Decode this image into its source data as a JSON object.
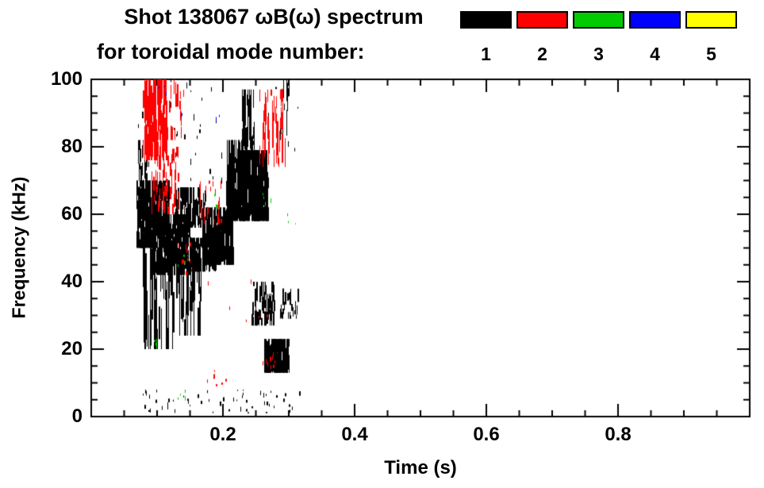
{
  "chart": {
    "title": "Shot 138067 ωB(ω) spectrum",
    "subtitle": "for toroidal mode number:"
  },
  "legend": {
    "position": "top-right",
    "items": [
      {
        "label": "1",
        "color": "#000000"
      },
      {
        "label": "2",
        "color": "#ff0000"
      },
      {
        "label": "3",
        "color": "#00cc00"
      },
      {
        "label": "4",
        "color": "#0000ff"
      },
      {
        "label": "5",
        "color": "#ffff00"
      }
    ]
  },
  "chart_data": {
    "type": "scatter",
    "title": "Shot 138067 ωB(ω) spectrum for toroidal mode number: 1 2 3 4 5",
    "xlabel": "Time (s)",
    "ylabel": "Frequency (kHz)",
    "xlim": [
      0,
      1.0
    ],
    "ylim": [
      0,
      100
    ],
    "xticks": [
      0.2,
      0.4,
      0.6,
      0.8
    ],
    "yticks": [
      0,
      20,
      40,
      60,
      80,
      100
    ],
    "x_minor_step": 0.05,
    "y_minor_step": 5,
    "grid": false,
    "seed": 42,
    "series": [
      {
        "name": "n=1",
        "color": "#000000",
        "clusters": [
          {
            "t": [
              0.068,
              0.118
            ],
            "f": [
              50,
              70
            ],
            "n": 300,
            "len": [
              2,
              9
            ]
          },
          {
            "t": [
              0.092,
              0.15
            ],
            "f": [
              42,
              60
            ],
            "n": 280,
            "len": [
              2,
              9
            ]
          },
          {
            "t": [
              0.078,
              0.125
            ],
            "f": [
              20,
              52
            ],
            "n": 45,
            "len": [
              6,
              26
            ]
          },
          {
            "t": [
              0.125,
              0.172
            ],
            "f": [
              56,
              68
            ],
            "n": 120,
            "len": [
              2,
              6
            ]
          },
          {
            "t": [
              0.128,
              0.175
            ],
            "f": [
              24,
              50
            ],
            "n": 40,
            "len": [
              4,
              18
            ]
          },
          {
            "t": [
              0.15,
              0.19
            ],
            "f": [
              43,
              53
            ],
            "n": 110,
            "len": [
              2,
              7
            ]
          },
          {
            "t": [
              0.168,
              0.215
            ],
            "f": [
              45,
              62
            ],
            "n": 220,
            "len": [
              3,
              9
            ]
          },
          {
            "t": [
              0.205,
              0.228
            ],
            "f": [
              58,
              82
            ],
            "n": 70,
            "len": [
              4,
              16
            ]
          },
          {
            "t": [
              0.222,
              0.268
            ],
            "f": [
              58,
              79
            ],
            "n": 300,
            "len": [
              3,
              11
            ]
          },
          {
            "t": [
              0.228,
              0.247
            ],
            "f": [
              79,
              97
            ],
            "n": 45,
            "len": [
              3,
              12
            ]
          },
          {
            "t": [
              0.243,
              0.277
            ],
            "f": [
              27,
              40
            ],
            "n": 60,
            "len": [
              2,
              7
            ]
          },
          {
            "t": [
              0.262,
              0.3
            ],
            "f": [
              13,
              23
            ],
            "n": 240,
            "len": [
              2,
              6
            ]
          },
          {
            "t": [
              0.286,
              0.316
            ],
            "f": [
              29,
              38
            ],
            "n": 25,
            "len": [
              1,
              4
            ]
          },
          {
            "t": [
              0.075,
              0.318
            ],
            "f": [
              1,
              8
            ],
            "n": 55,
            "len": [
              0.4,
              1.5
            ]
          },
          {
            "t": [
              0.07,
              0.085
            ],
            "f": [
              68,
              82
            ],
            "n": 25,
            "len": [
              2,
              6
            ]
          },
          {
            "t": [
              0.15,
              0.32
            ],
            "f": [
              68,
              100
            ],
            "n": 35,
            "len": [
              0.4,
              2
            ]
          },
          {
            "t": [
              0.07,
              0.145
            ],
            "f": [
              72,
              100
            ],
            "n": 25,
            "len": [
              0.4,
              2
            ]
          },
          {
            "t": [
              0.285,
              0.3
            ],
            "f": [
              82,
              100
            ],
            "n": 15,
            "len": [
              2,
              8
            ]
          }
        ]
      },
      {
        "name": "n=2",
        "color": "#ff0000",
        "clusters": [
          {
            "t": [
              0.078,
              0.115
            ],
            "f": [
              76,
              100
            ],
            "n": 130,
            "len": [
              3,
              12
            ]
          },
          {
            "t": [
              0.088,
              0.132
            ],
            "f": [
              60,
              80
            ],
            "n": 55,
            "len": [
              2,
              6
            ]
          },
          {
            "t": [
              0.1,
              0.14
            ],
            "f": [
              82,
              100
            ],
            "n": 30,
            "len": [
              2,
              5
            ]
          },
          {
            "t": [
              0.16,
              0.198
            ],
            "f": [
              57,
              70
            ],
            "n": 25,
            "len": [
              1,
              4
            ]
          },
          {
            "t": [
              0.255,
              0.295
            ],
            "f": [
              74,
              97
            ],
            "n": 45,
            "len": [
              3,
              10
            ]
          },
          {
            "t": [
              0.258,
              0.278
            ],
            "f": [
              14,
              19
            ],
            "n": 10,
            "len": [
              0.5,
              1.5
            ]
          },
          {
            "t": [
              0.175,
              0.205
            ],
            "f": [
              9,
              14
            ],
            "n": 7,
            "len": [
              0.5,
              1.5
            ]
          },
          {
            "t": [
              0.13,
              0.16
            ],
            "f": [
              45,
              52
            ],
            "n": 10,
            "len": [
              0.5,
              2
            ]
          },
          {
            "t": [
              0.095,
              0.3
            ],
            "f": [
              28,
              44
            ],
            "n": 8,
            "len": [
              0.5,
              1.5
            ]
          }
        ]
      },
      {
        "name": "n=3",
        "color": "#00cc00",
        "clusters": [
          {
            "t": [
              0.085,
              0.1
            ],
            "f": [
              20,
              24
            ],
            "n": 4,
            "len": [
              0.5,
              1.5
            ]
          },
          {
            "t": [
              0.125,
              0.145
            ],
            "f": [
              3,
              8
            ],
            "n": 4,
            "len": [
              0.5,
              1.5
            ]
          },
          {
            "t": [
              0.13,
              0.145
            ],
            "f": [
              44,
              48
            ],
            "n": 3,
            "len": [
              0.5,
              1.5
            ]
          },
          {
            "t": [
              0.185,
              0.2
            ],
            "f": [
              60,
              66
            ],
            "n": 4,
            "len": [
              0.5,
              1.5
            ]
          },
          {
            "t": [
              0.255,
              0.275
            ],
            "f": [
              62,
              68
            ],
            "n": 4,
            "len": [
              0.5,
              1.5
            ]
          },
          {
            "t": [
              0.295,
              0.31
            ],
            "f": [
              57,
              62
            ],
            "n": 3,
            "len": [
              0.5,
              1.5
            ]
          }
        ]
      },
      {
        "name": "n=4",
        "color": "#0000ff",
        "clusters": [
          {
            "t": [
              0.1,
              0.115
            ],
            "f": [
              94,
              99
            ],
            "n": 3,
            "len": [
              0.5,
              1.5
            ]
          },
          {
            "t": [
              0.13,
              0.14
            ],
            "f": [
              86,
              90
            ],
            "n": 2,
            "len": [
              0.5,
              1.5
            ]
          },
          {
            "t": [
              0.185,
              0.195
            ],
            "f": [
              87,
              91
            ],
            "n": 2,
            "len": [
              0.5,
              1.5
            ]
          }
        ]
      },
      {
        "name": "n=5",
        "color": "#ffff00",
        "clusters": []
      }
    ]
  }
}
